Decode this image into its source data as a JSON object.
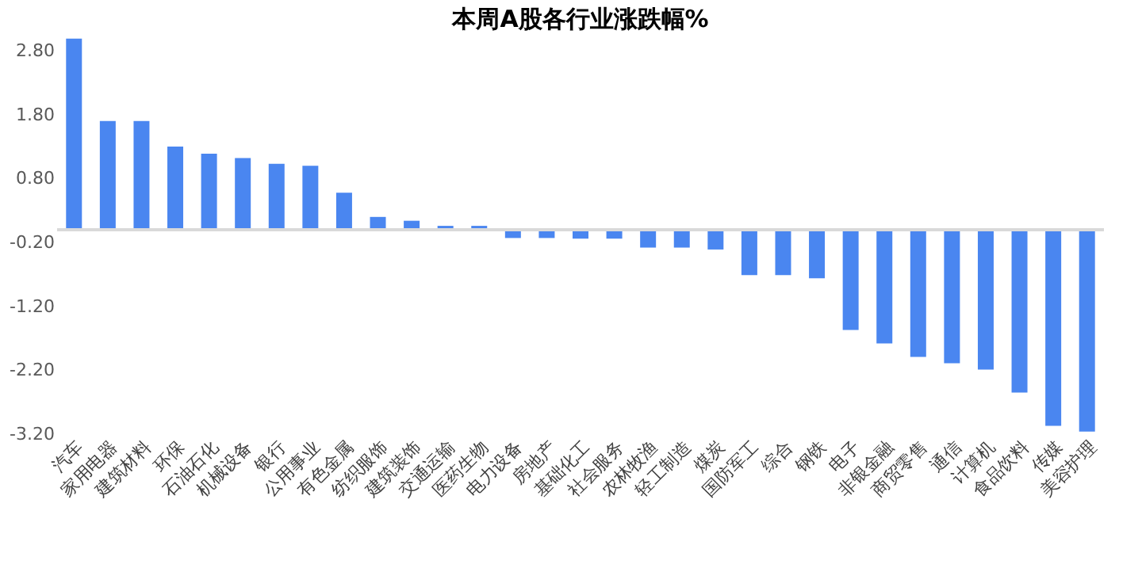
{
  "chart_data": {
    "type": "bar",
    "title": "本周A股各行业涨跌幅%",
    "categories": [
      "汽车",
      "家用电器",
      "建筑材料",
      "环保",
      "石油石化",
      "机械设备",
      "银行",
      "公用事业",
      "有色金属",
      "纺织服饰",
      "建筑装饰",
      "交通运输",
      "医药生物",
      "电力设备",
      "房地产",
      "基础化工",
      "社会服务",
      "农林牧渔",
      "轻工制造",
      "煤炭",
      "国防军工",
      "综合",
      "钢铁",
      "电子",
      "非银金融",
      "商贸零售",
      "通信",
      "计算机",
      "食品饮料",
      "传媒",
      "美容护理"
    ],
    "values": [
      2.99,
      1.7,
      1.7,
      1.3,
      1.19,
      1.12,
      1.03,
      1.0,
      0.58,
      0.2,
      0.14,
      0.06,
      0.06,
      -0.13,
      -0.13,
      -0.14,
      -0.14,
      -0.28,
      -0.28,
      -0.31,
      -0.71,
      -0.71,
      -0.76,
      -1.57,
      -1.78,
      -1.99,
      -2.09,
      -2.19,
      -2.55,
      -3.07,
      -3.16
    ],
    "color": "#4a86f0",
    "ylim": [
      -3.2,
      3.0
    ],
    "yticks": [
      {
        "value": 2.8,
        "label": "2.80"
      },
      {
        "value": 1.8,
        "label": "1.80"
      },
      {
        "value": 0.8,
        "label": "0.80"
      },
      {
        "value": -0.2,
        "label": "-0.20"
      },
      {
        "value": -1.2,
        "label": "-1.20"
      },
      {
        "value": -2.2,
        "label": "-2.20"
      },
      {
        "value": -3.2,
        "label": "-3.20"
      }
    ],
    "grid": false
  }
}
